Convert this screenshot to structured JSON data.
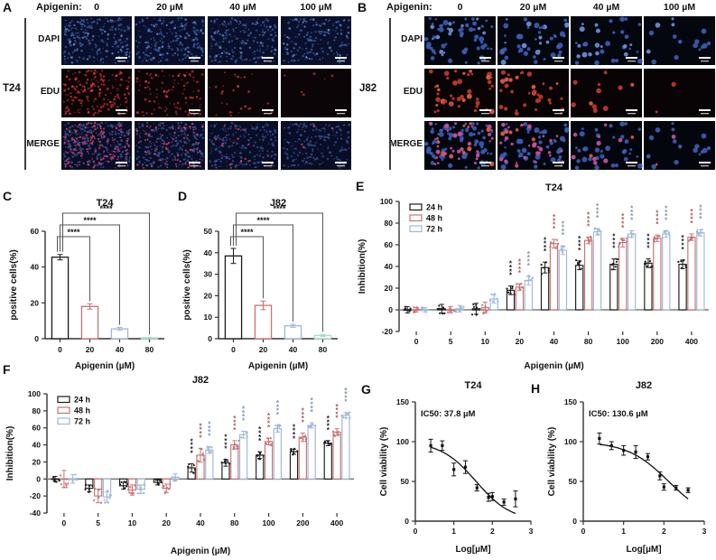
{
  "figure": {
    "panels": {
      "A": {
        "label": "A",
        "cell_line": "T24",
        "header": "Apigenin:",
        "columns": [
          "0",
          "20 µM",
          "40 µM",
          "100 µM"
        ],
        "rows": [
          "DAPI",
          "EDU",
          "MERGE"
        ]
      },
      "B": {
        "label": "B",
        "cell_line": "J82",
        "header": "Apigenin:",
        "columns": [
          "0",
          "20 µM",
          "40 µM",
          "100 µM"
        ],
        "rows": [
          "DAPI",
          "EDU",
          "MERGE"
        ]
      }
    }
  },
  "chart_data": [
    {
      "panel_label": "C",
      "type": "bar",
      "title": "T24",
      "xlabel": "Apigenin (µM)",
      "ylabel": "positive cells(%)",
      "categories": [
        "0",
        "20",
        "40",
        "80"
      ],
      "values": [
        45.5,
        18,
        5.5,
        0.5
      ],
      "errors": [
        1.5,
        1.5,
        0.8,
        0.3
      ],
      "bar_colors": [
        "#1a1a1a",
        "#c87272",
        "#9db7d8",
        "#a9dcc6"
      ],
      "ylim": [
        0,
        60
      ],
      "yticks": [
        0,
        20,
        40,
        60
      ],
      "significance": [
        {
          "from": 0,
          "to": 1,
          "label": "****"
        },
        {
          "from": 0,
          "to": 2,
          "label": "****"
        },
        {
          "from": 0,
          "to": 3,
          "label": "****"
        }
      ]
    },
    {
      "panel_label": "D",
      "type": "bar",
      "title": "J82",
      "xlabel": "Apigenin (µM)",
      "ylabel": "positive cells(%)",
      "categories": [
        "0",
        "20",
        "40",
        "80"
      ],
      "values": [
        38.5,
        15.5,
        6,
        1.5
      ],
      "errors": [
        3.5,
        2,
        0.7,
        0.5
      ],
      "bar_colors": [
        "#1a1a1a",
        "#c87272",
        "#9db7d8",
        "#a9dcc6"
      ],
      "ylim": [
        0,
        50
      ],
      "yticks": [
        0,
        10,
        20,
        30,
        40,
        50
      ],
      "significance": [
        {
          "from": 0,
          "to": 1,
          "label": "****"
        },
        {
          "from": 0,
          "to": 2,
          "label": "****"
        },
        {
          "from": 0,
          "to": 3,
          "label": "****"
        }
      ]
    },
    {
      "panel_label": "E",
      "type": "grouped-bar",
      "title": "T24",
      "xlabel": "Apigenin (µM)",
      "ylabel": "Inhibition(%)",
      "categories": [
        "0",
        "5",
        "10",
        "20",
        "40",
        "80",
        "100",
        "200",
        "400"
      ],
      "ylim": [
        -20,
        100
      ],
      "yticks": [
        -20,
        0,
        20,
        40,
        60,
        80,
        100
      ],
      "sig_label": "****",
      "sig_groups": [
        3,
        4,
        5,
        6,
        7,
        8
      ],
      "series": [
        {
          "name": "24 h",
          "color": "#1a1a1a",
          "values": [
            0,
            1,
            1,
            18,
            39,
            41,
            42,
            43,
            42
          ],
          "errors": [
            3,
            4,
            5,
            4,
            5,
            4,
            5,
            4,
            4
          ]
        },
        {
          "name": "48 h",
          "color": "#c87272",
          "values": [
            0,
            0,
            2,
            21,
            61,
            64,
            62,
            66,
            67
          ],
          "errors": [
            2,
            3,
            5,
            3,
            4,
            3,
            4,
            3,
            3
          ]
        },
        {
          "name": "72 h",
          "color": "#9db7d8",
          "values": [
            0,
            1,
            10,
            27,
            55,
            72,
            70,
            70,
            71
          ],
          "errors": [
            2,
            3,
            4,
            4,
            4,
            3,
            3,
            3,
            3
          ]
        }
      ]
    },
    {
      "panel_label": "F",
      "type": "grouped-bar",
      "title": "J82",
      "xlabel": "Apigenin (µM)",
      "ylabel": "Inhibition(%)",
      "categories": [
        "0",
        "5",
        "10",
        "20",
        "40",
        "80",
        "100",
        "200",
        "400"
      ],
      "ylim": [
        -40,
        100
      ],
      "yticks": [
        -40,
        -20,
        0,
        20,
        40,
        60,
        80,
        100
      ],
      "sig_label": "****",
      "sig_groups": [
        4,
        5,
        6,
        7,
        8
      ],
      "series": [
        {
          "name": "24 h",
          "color": "#1a1a1a",
          "values": [
            0,
            -11,
            -8,
            -4,
            13,
            19,
            28,
            32,
            42
          ],
          "errors": [
            3,
            4,
            4,
            3,
            5,
            4,
            4,
            3,
            3
          ]
        },
        {
          "name": "48 h",
          "color": "#c87272",
          "values": [
            0,
            -20,
            -13,
            -11,
            28,
            40,
            44,
            49,
            55
          ],
          "errors": [
            10,
            8,
            6,
            5,
            8,
            5,
            4,
            5,
            4
          ]
        },
        {
          "name": "72 h",
          "color": "#9db7d8",
          "values": [
            0,
            -21,
            -12,
            2,
            34,
            52,
            59,
            63,
            75
          ],
          "errors": [
            5,
            6,
            5,
            4,
            4,
            4,
            4,
            3,
            3
          ]
        }
      ]
    },
    {
      "panel_label": "G",
      "type": "scatter-fit",
      "title": "T24",
      "annotation": "IC50: 37.8 µM",
      "xlabel": "Log[µM]",
      "ylabel": "Cell viability (%)",
      "x": [
        0.4,
        0.7,
        1.0,
        1.3,
        1.6,
        1.9,
        2.0,
        2.3,
        2.6
      ],
      "y": [
        95,
        95,
        65,
        68,
        42,
        30,
        31,
        24,
        28
      ],
      "errors": [
        8,
        6,
        8,
        8,
        4,
        5,
        5,
        4,
        10
      ],
      "xlim": [
        0,
        3
      ],
      "xticks": [
        0,
        1,
        2,
        3
      ],
      "ylim": [
        0,
        150
      ],
      "yticks": [
        0,
        50,
        100,
        150
      ],
      "fit": {
        "top": 100,
        "bottom": 0,
        "logIC50": 1.577,
        "hill": 0.95,
        "range": [
          0.4,
          2.6
        ]
      }
    },
    {
      "panel_label": "H",
      "type": "scatter-fit",
      "title": "J82",
      "annotation": "IC50: 130.6 µM",
      "xlabel": "Log[µM]",
      "ylabel": "Cell viability (%)",
      "x": [
        0.4,
        0.7,
        1.0,
        1.3,
        1.6,
        1.9,
        2.0,
        2.3,
        2.6
      ],
      "y": [
        104,
        95,
        89,
        87,
        81,
        57,
        43,
        42,
        39
      ],
      "errors": [
        7,
        5,
        6,
        8,
        4,
        5,
        4,
        3,
        3
      ],
      "xlim": [
        0,
        3
      ],
      "xticks": [
        0,
        1,
        2,
        3
      ],
      "ylim": [
        0,
        150
      ],
      "yticks": [
        0,
        50,
        100,
        150
      ],
      "fit": {
        "top": 100,
        "bottom": 0,
        "logIC50": 2.116,
        "hill": 0.85,
        "range": [
          0.4,
          2.6
        ]
      }
    }
  ]
}
